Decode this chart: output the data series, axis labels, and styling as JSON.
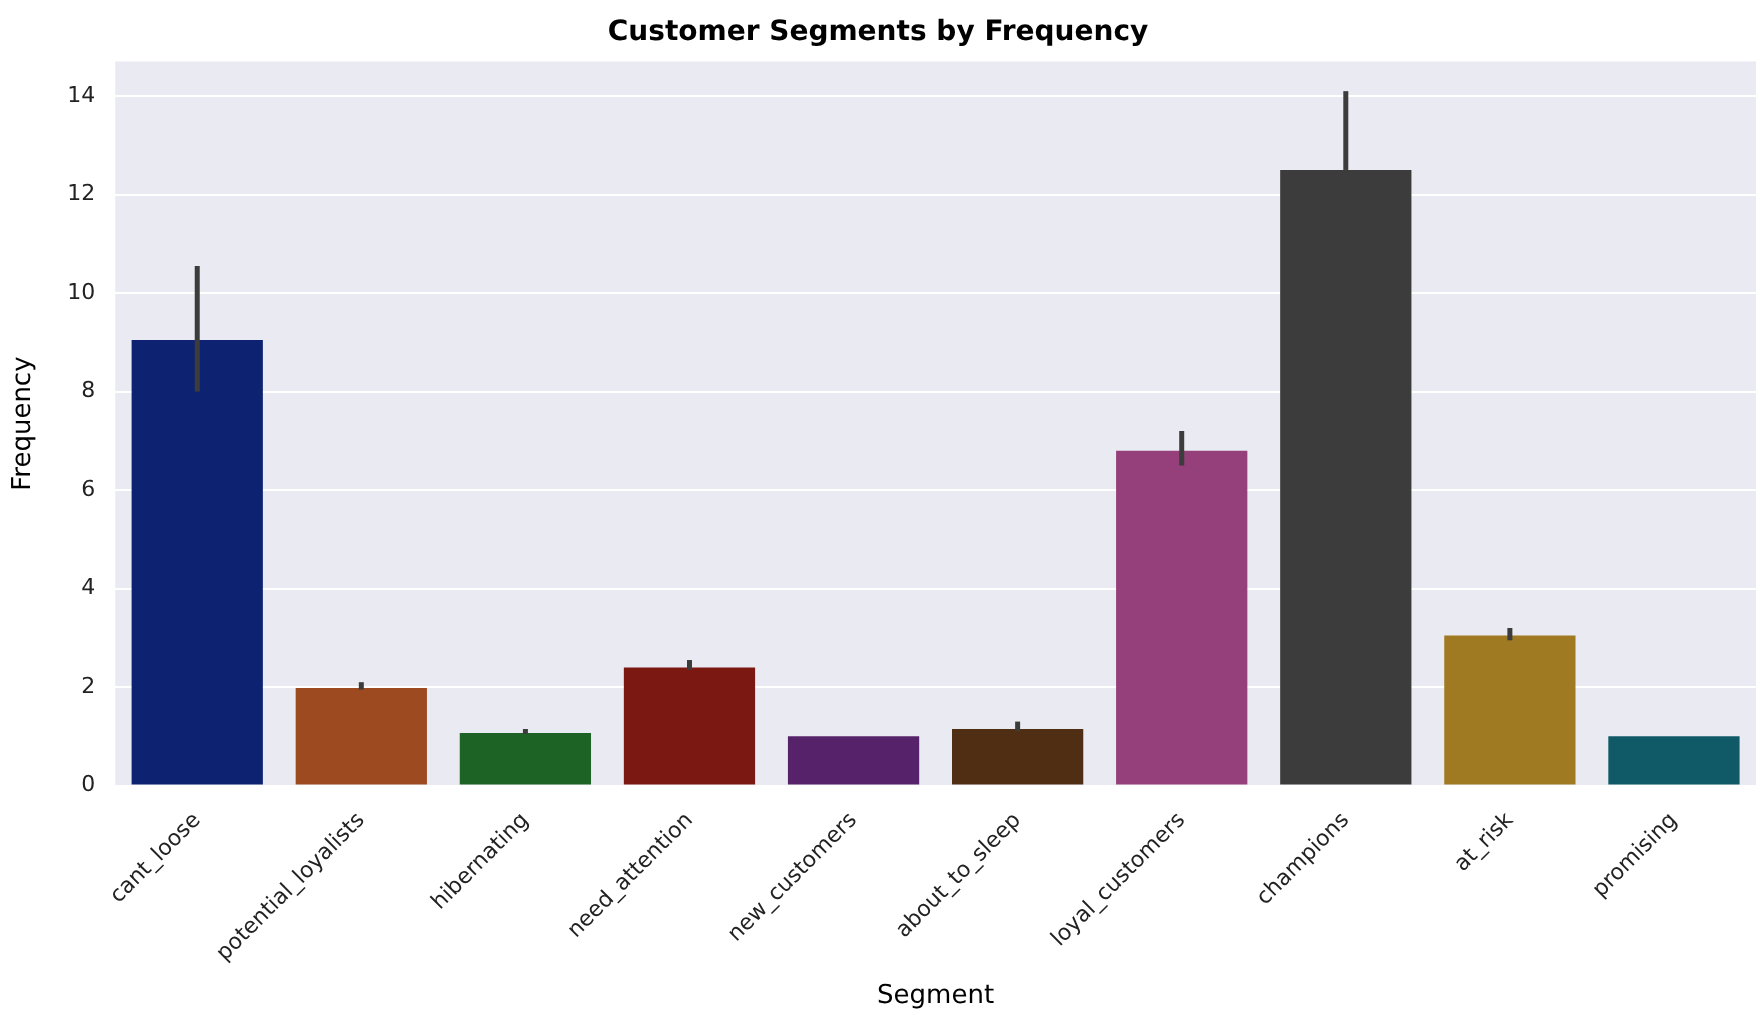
{
  "chart_data": {
    "type": "bar",
    "title": "Customer Segments by Frequency",
    "xlabel": "Segment",
    "ylabel": "Frequency",
    "categories": [
      "cant_loose",
      "potential_loyalists",
      "hibernating",
      "need_attention",
      "new_customers",
      "about_to_sleep",
      "loyal_customers",
      "champions",
      "at_risk",
      "promising"
    ],
    "values": [
      9.05,
      1.98,
      1.07,
      2.4,
      1.0,
      1.15,
      6.8,
      12.5,
      3.05,
      1.0
    ],
    "colors": [
      "#0d2270",
      "#9e4a20",
      "#1d6325",
      "#7c1812",
      "#56236a",
      "#4f2e14",
      "#95407a",
      "#3c3c3c",
      "#a07a22",
      "#0f5a66"
    ],
    "errors": [
      [
        8.0,
        10.55
      ],
      [
        1.95,
        2.1
      ],
      [
        1.05,
        1.15
      ],
      [
        2.35,
        2.55
      ],
      null,
      [
        1.1,
        1.3
      ],
      [
        6.5,
        7.2
      ],
      [
        12.5,
        14.1
      ],
      [
        2.95,
        3.2
      ],
      null
    ],
    "ylim": [
      0,
      14.7
    ],
    "yticks": [
      0,
      2,
      4,
      6,
      8,
      10,
      12,
      14
    ],
    "grid": "y",
    "legend": false
  }
}
